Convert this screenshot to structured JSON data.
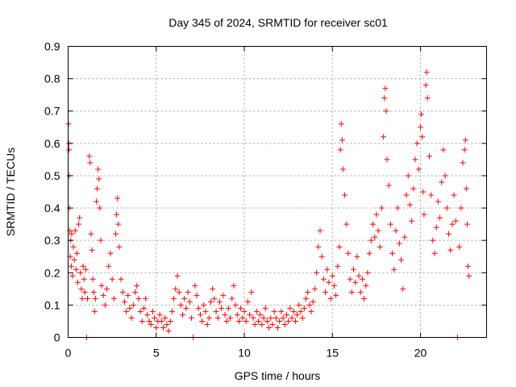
{
  "chart_data": {
    "type": "scatter",
    "title": "Day 345 of 2024, SRMTID for receiver sc01",
    "xlabel": "GPS time / hours",
    "ylabel": "SRMTID / TECUs",
    "xlim": [
      0,
      23.75
    ],
    "ylim": [
      0,
      0.9
    ],
    "x_ticks": [
      0,
      5,
      10,
      15,
      20
    ],
    "x_tick_labels": [
      "0",
      "5",
      "10",
      "15",
      "20"
    ],
    "y_ticks": [
      0,
      0.1,
      0.2,
      0.3,
      0.4,
      0.5,
      0.6,
      0.7,
      0.8,
      0.9
    ],
    "y_tick_labels": [
      "0",
      "0.1",
      "0.2",
      "0.3",
      "0.4",
      "0.5",
      "0.6",
      "0.7",
      "0.8",
      "0.9"
    ],
    "grid": true,
    "marker": "plus",
    "color": "#ff0000",
    "series": [
      {
        "name": "sc01",
        "points": [
          [
            0.02,
            0.66
          ],
          [
            0.04,
            0.6
          ],
          [
            0.05,
            0.58
          ],
          [
            0.06,
            0.5
          ],
          [
            0.08,
            0.4
          ],
          [
            0.1,
            0.33
          ],
          [
            0.12,
            0.25
          ],
          [
            0.15,
            0.3
          ],
          [
            0.18,
            0.22
          ],
          [
            0.2,
            0.32
          ],
          [
            0.25,
            0.19
          ],
          [
            0.3,
            0.28
          ],
          [
            0.35,
            0.24
          ],
          [
            0.4,
            0.33
          ],
          [
            0.45,
            0.21
          ],
          [
            0.5,
            0.26
          ],
          [
            0.55,
            0.17
          ],
          [
            0.6,
            0.35
          ],
          [
            0.65,
            0.37
          ],
          [
            0.7,
            0.2
          ],
          [
            0.75,
            0.15
          ],
          [
            0.8,
            0.12
          ],
          [
            0.85,
            0.22
          ],
          [
            0.9,
            0.18
          ],
          [
            0.95,
            0.14
          ],
          [
            1.0,
            0.21
          ],
          [
            1.05,
            0.0
          ],
          [
            1.1,
            0.12
          ],
          [
            1.2,
            0.56
          ],
          [
            1.25,
            0.54
          ],
          [
            1.3,
            0.32
          ],
          [
            1.35,
            0.27
          ],
          [
            1.4,
            0.18
          ],
          [
            1.45,
            0.14
          ],
          [
            1.5,
            0.08
          ],
          [
            1.55,
            0.12
          ],
          [
            1.6,
            0.42
          ],
          [
            1.65,
            0.46
          ],
          [
            1.7,
            0.52
          ],
          [
            1.75,
            0.49
          ],
          [
            1.8,
            0.4
          ],
          [
            1.85,
            0.3
          ],
          [
            1.9,
            0.16
          ],
          [
            2.0,
            0.13
          ],
          [
            2.1,
            0.1
          ],
          [
            2.2,
            0.15
          ],
          [
            2.3,
            0.22
          ],
          [
            2.4,
            0.26
          ],
          [
            2.5,
            0.18
          ],
          [
            2.6,
            0.12
          ],
          [
            2.7,
            0.32
          ],
          [
            2.75,
            0.38
          ],
          [
            2.8,
            0.43
          ],
          [
            2.85,
            0.35
          ],
          [
            2.9,
            0.28
          ],
          [
            3.0,
            0.18
          ],
          [
            3.1,
            0.14
          ],
          [
            3.2,
            0.11
          ],
          [
            3.3,
            0.08
          ],
          [
            3.4,
            0.13
          ],
          [
            3.5,
            0.09
          ],
          [
            3.6,
            0.06
          ],
          [
            3.7,
            0.1
          ],
          [
            3.8,
            0.14
          ],
          [
            3.9,
            0.16
          ],
          [
            4.0,
            0.12
          ],
          [
            4.1,
            0.08
          ],
          [
            4.2,
            0.05
          ],
          [
            4.3,
            0.09
          ],
          [
            4.4,
            0.12
          ],
          [
            4.5,
            0.07
          ],
          [
            4.6,
            0.05
          ],
          [
            4.7,
            0.04
          ],
          [
            4.8,
            0.08
          ],
          [
            4.9,
            0.06
          ],
          [
            5.0,
            0.03
          ],
          [
            5.1,
            0.05
          ],
          [
            5.2,
            0.07
          ],
          [
            5.3,
            0.05
          ],
          [
            5.4,
            0.03
          ],
          [
            5.5,
            0.06
          ],
          [
            5.6,
            0.04
          ],
          [
            5.7,
            0.02
          ],
          [
            5.8,
            0.05
          ],
          [
            5.9,
            0.08
          ],
          [
            6.0,
            0.12
          ],
          [
            6.1,
            0.15
          ],
          [
            6.2,
            0.19
          ],
          [
            6.3,
            0.14
          ],
          [
            6.4,
            0.1
          ],
          [
            6.5,
            0.07
          ],
          [
            6.6,
            0.12
          ],
          [
            6.7,
            0.09
          ],
          [
            6.8,
            0.14
          ],
          [
            6.9,
            0.11
          ],
          [
            7.0,
            0.06
          ],
          [
            7.1,
            0.0
          ],
          [
            7.2,
            0.16
          ],
          [
            7.3,
            0.13
          ],
          [
            7.4,
            0.09
          ],
          [
            7.5,
            0.07
          ],
          [
            7.6,
            0.05
          ],
          [
            7.7,
            0.1
          ],
          [
            7.8,
            0.08
          ],
          [
            7.9,
            0.04
          ],
          [
            8.0,
            0.06
          ],
          [
            8.1,
            0.11
          ],
          [
            8.2,
            0.15
          ],
          [
            8.3,
            0.12
          ],
          [
            8.4,
            0.08
          ],
          [
            8.5,
            0.06
          ],
          [
            8.6,
            0.11
          ],
          [
            8.7,
            0.09
          ],
          [
            8.8,
            0.13
          ],
          [
            8.9,
            0.07
          ],
          [
            9.0,
            0.05
          ],
          [
            9.1,
            0.09
          ],
          [
            9.2,
            0.06
          ],
          [
            9.3,
            0.12
          ],
          [
            9.4,
            0.16
          ],
          [
            9.5,
            0.1
          ],
          [
            9.6,
            0.07
          ],
          [
            9.7,
            0.05
          ],
          [
            9.8,
            0.09
          ],
          [
            9.9,
            0.06
          ],
          [
            10.0,
            0.08
          ],
          [
            10.1,
            0.05
          ],
          [
            10.2,
            0.11
          ],
          [
            10.3,
            0.07
          ],
          [
            10.4,
            0.14
          ],
          [
            10.5,
            0.06
          ],
          [
            10.6,
            0.04
          ],
          [
            10.7,
            0.08
          ],
          [
            10.8,
            0.05
          ],
          [
            10.9,
            0.07
          ],
          [
            11.0,
            0.04
          ],
          [
            11.1,
            0.06
          ],
          [
            11.2,
            0.09
          ],
          [
            11.3,
            0.05
          ],
          [
            11.4,
            0.03
          ],
          [
            11.5,
            0.06
          ],
          [
            11.6,
            0.04
          ],
          [
            11.7,
            0.08
          ],
          [
            11.8,
            0.06
          ],
          [
            11.9,
            0.03
          ],
          [
            12.0,
            0.05
          ],
          [
            12.1,
            0.08
          ],
          [
            12.2,
            0.06
          ],
          [
            12.3,
            0.04
          ],
          [
            12.4,
            0.07
          ],
          [
            12.5,
            0.05
          ],
          [
            12.6,
            0.09
          ],
          [
            12.7,
            0.06
          ],
          [
            12.8,
            0.08
          ],
          [
            12.9,
            0.05
          ],
          [
            13.0,
            0.07
          ],
          [
            13.1,
            0.1
          ],
          [
            13.2,
            0.08
          ],
          [
            13.3,
            0.06
          ],
          [
            13.4,
            0.09
          ],
          [
            13.5,
            0.12
          ],
          [
            13.6,
            0.14
          ],
          [
            13.7,
            0.1
          ],
          [
            13.8,
            0.08
          ],
          [
            13.9,
            0.11
          ],
          [
            14.0,
            0.15
          ],
          [
            14.1,
            0.2
          ],
          [
            14.2,
            0.28
          ],
          [
            14.3,
            0.33
          ],
          [
            14.4,
            0.25
          ],
          [
            14.5,
            0.18
          ],
          [
            14.6,
            0.14
          ],
          [
            14.7,
            0.21
          ],
          [
            14.8,
            0.17
          ],
          [
            14.9,
            0.12
          ],
          [
            15.0,
            0.19
          ],
          [
            15.1,
            0.16
          ],
          [
            15.2,
            0.13
          ],
          [
            15.3,
            0.22
          ],
          [
            15.4,
            0.28
          ],
          [
            15.45,
            0.58
          ],
          [
            15.5,
            0.66
          ],
          [
            15.55,
            0.61
          ],
          [
            15.6,
            0.52
          ],
          [
            15.7,
            0.44
          ],
          [
            15.8,
            0.35
          ],
          [
            15.9,
            0.26
          ],
          [
            16.0,
            0.18
          ],
          [
            16.1,
            0.14
          ],
          [
            16.2,
            0.21
          ],
          [
            16.3,
            0.17
          ],
          [
            16.4,
            0.25
          ],
          [
            16.5,
            0.19
          ],
          [
            16.6,
            0.14
          ],
          [
            16.7,
            0.18
          ],
          [
            16.8,
            0.12
          ],
          [
            16.9,
            0.16
          ],
          [
            17.0,
            0.2
          ],
          [
            17.1,
            0.26
          ],
          [
            17.2,
            0.3
          ],
          [
            17.3,
            0.35
          ],
          [
            17.4,
            0.31
          ],
          [
            17.5,
            0.38
          ],
          [
            17.6,
            0.33
          ],
          [
            17.7,
            0.28
          ],
          [
            17.8,
            0.4
          ],
          [
            17.9,
            0.62
          ],
          [
            17.95,
            0.74
          ],
          [
            18.0,
            0.77
          ],
          [
            18.05,
            0.7
          ],
          [
            18.1,
            0.55
          ],
          [
            18.2,
            0.47
          ],
          [
            18.3,
            0.35
          ],
          [
            18.4,
            0.26
          ],
          [
            18.5,
            0.21
          ],
          [
            18.6,
            0.33
          ],
          [
            18.7,
            0.4
          ],
          [
            18.8,
            0.29
          ],
          [
            18.9,
            0.24
          ],
          [
            19.0,
            0.15
          ],
          [
            19.1,
            0.31
          ],
          [
            19.2,
            0.44
          ],
          [
            19.3,
            0.5
          ],
          [
            19.4,
            0.41
          ],
          [
            19.5,
            0.36
          ],
          [
            19.6,
            0.46
          ],
          [
            19.7,
            0.55
          ],
          [
            19.8,
            0.6
          ],
          [
            19.9,
            0.52
          ],
          [
            20.0,
            0.65
          ],
          [
            20.05,
            0.69
          ],
          [
            20.1,
            0.62
          ],
          [
            20.15,
            0.45
          ],
          [
            20.2,
            0.38
          ],
          [
            20.3,
            0.78
          ],
          [
            20.35,
            0.82
          ],
          [
            20.4,
            0.74
          ],
          [
            20.5,
            0.56
          ],
          [
            20.6,
            0.44
          ],
          [
            20.7,
            0.3
          ],
          [
            20.8,
            0.26
          ],
          [
            20.9,
            0.34
          ],
          [
            21.0,
            0.42
          ],
          [
            21.1,
            0.37
          ],
          [
            21.2,
            0.48
          ],
          [
            21.3,
            0.58
          ],
          [
            21.4,
            0.5
          ],
          [
            21.5,
            0.4
          ],
          [
            21.6,
            0.32
          ],
          [
            21.7,
            0.27
          ],
          [
            21.8,
            0.35
          ],
          [
            21.9,
            0.44
          ],
          [
            22.0,
            0.36
          ],
          [
            22.1,
            0.0
          ],
          [
            22.2,
            0.28
          ],
          [
            22.3,
            0.4
          ],
          [
            22.4,
            0.54
          ],
          [
            22.5,
            0.58
          ],
          [
            22.55,
            0.61
          ],
          [
            22.6,
            0.46
          ],
          [
            22.65,
            0.35
          ],
          [
            22.7,
            0.22
          ],
          [
            22.75,
            0.19
          ]
        ]
      }
    ]
  }
}
